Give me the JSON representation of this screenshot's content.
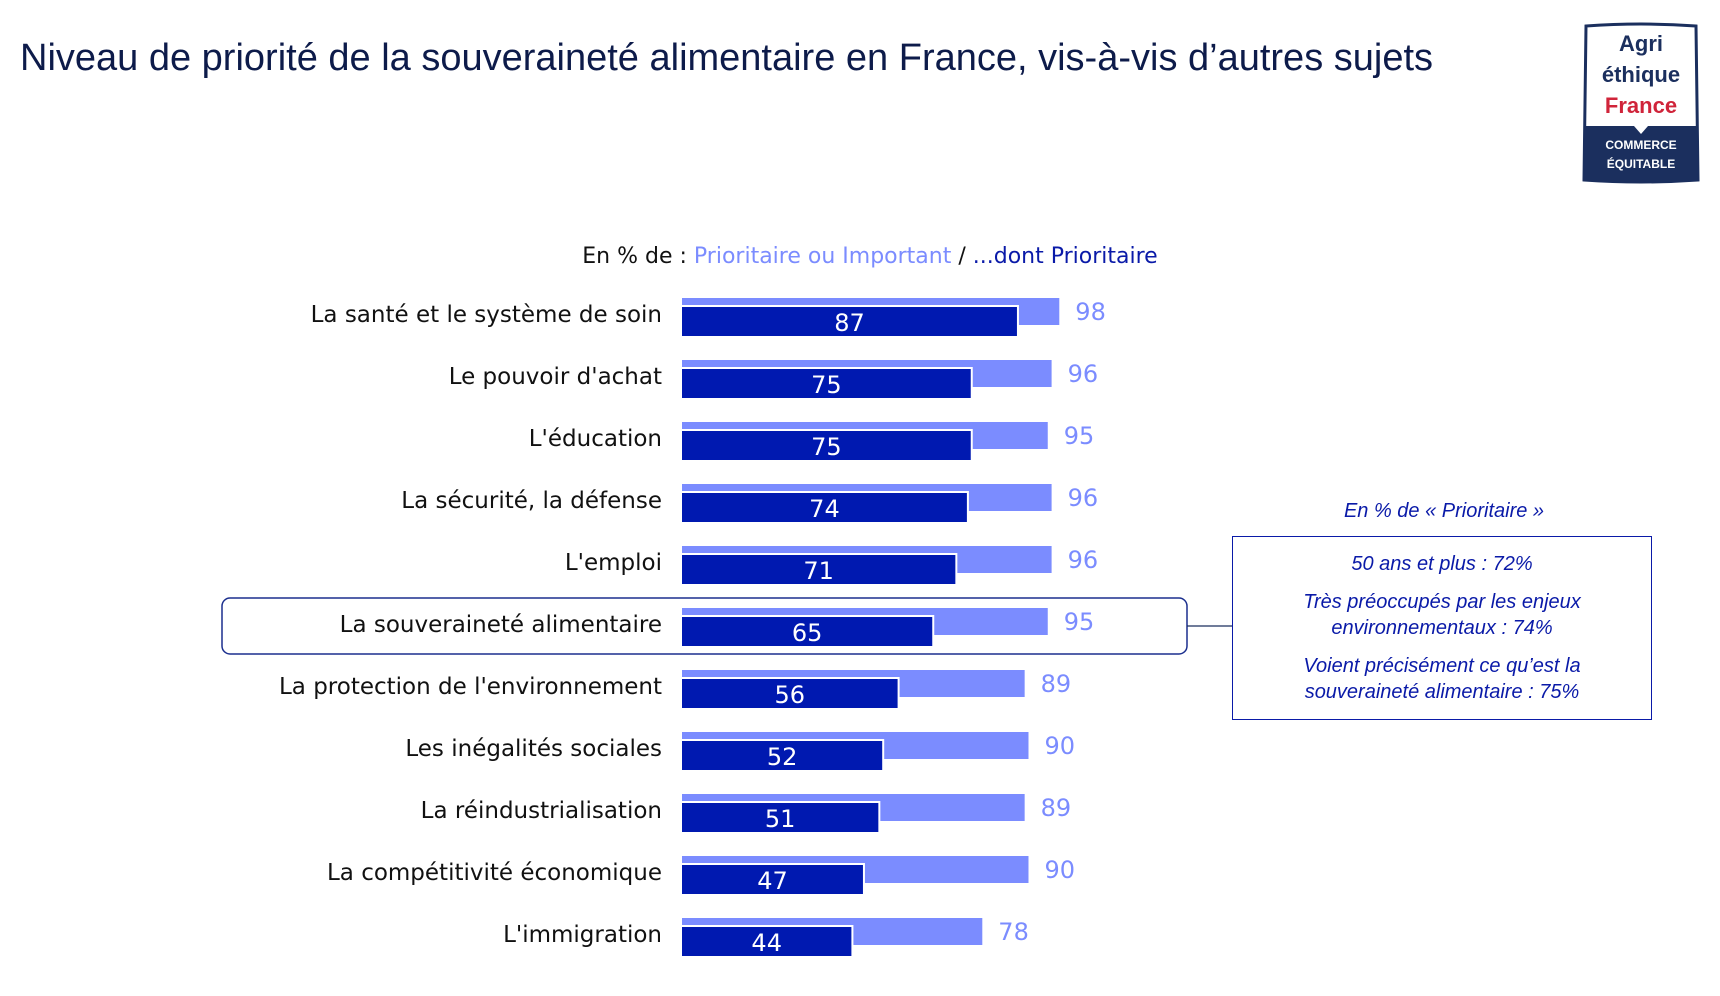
{
  "title": "Niveau de priorité de la souveraineté alimentaire en France, vis-à-vis d’autres sujets",
  "logo": {
    "line1": "Agri",
    "line2": "éthique",
    "line3": "France",
    "line4": "COMMERCE",
    "line5": "ÉQUITABLE"
  },
  "subtitle": {
    "prefix": "En % de : ",
    "series1": "Prioritaire ou Important",
    "sep": " / ",
    "series2": "...dont Prioritaire"
  },
  "chart_data": {
    "type": "bar",
    "orientation": "horizontal",
    "categories": [
      "La santé et le système de soin",
      "Le pouvoir d'achat",
      "L'éducation",
      "La sécurité, la défense",
      "L'emploi",
      "La souveraineté alimentaire",
      "La protection de l'environnement",
      "Les inégalités sociales",
      "La réindustrialisation",
      "La compétitivité économique",
      "L'immigration"
    ],
    "series": [
      {
        "name": "Prioritaire ou Important",
        "color": "#7b8cff",
        "values": [
          98,
          96,
          95,
          96,
          96,
          95,
          89,
          90,
          89,
          90,
          78
        ]
      },
      {
        "name": "...dont Prioritaire",
        "color": "#0019b0",
        "values": [
          87,
          75,
          75,
          74,
          71,
          65,
          56,
          52,
          51,
          47,
          44
        ]
      }
    ],
    "highlighted_category": "La souveraineté alimentaire",
    "xlim": [
      0,
      100
    ],
    "grid": false
  },
  "note": {
    "heading": "En % de « Prioritaire »",
    "items": [
      "50 ans et plus : 72%",
      "Très préoccupés par les enjeux environnementaux : 74%",
      "Voient précisément ce qu’est la souveraineté alimentaire : 75%"
    ]
  }
}
